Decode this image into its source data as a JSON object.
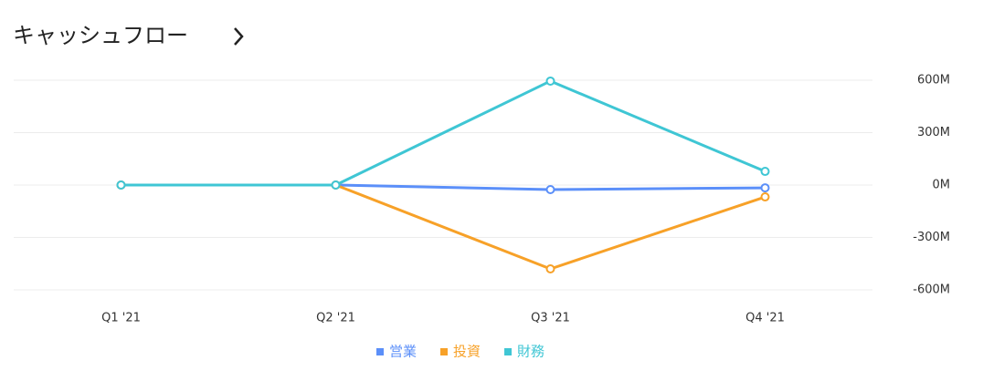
{
  "chart_data": {
    "type": "line",
    "title": "キャッシュフロー",
    "categories": [
      "Q1 '21",
      "Q2 '21",
      "Q3 '21",
      "Q4 '21"
    ],
    "series": [
      {
        "name": "営業",
        "color": "#5b8ff9",
        "values": [
          0,
          0,
          -26,
          -16
        ]
      },
      {
        "name": "投資",
        "color": "#f7a128",
        "values": [
          0,
          0,
          -480,
          -68
        ]
      },
      {
        "name": "財務",
        "color": "#3fc6d4",
        "values": [
          0,
          0,
          595,
          78
        ]
      }
    ],
    "ylim": [
      -600,
      600
    ],
    "yticks": [
      {
        "value": -600,
        "label": "-600M"
      },
      {
        "value": -300,
        "label": "-300M"
      },
      {
        "value": 0,
        "label": "0M"
      },
      {
        "value": 300,
        "label": "300M"
      },
      {
        "value": 600,
        "label": "600M"
      }
    ],
    "grid": true
  }
}
